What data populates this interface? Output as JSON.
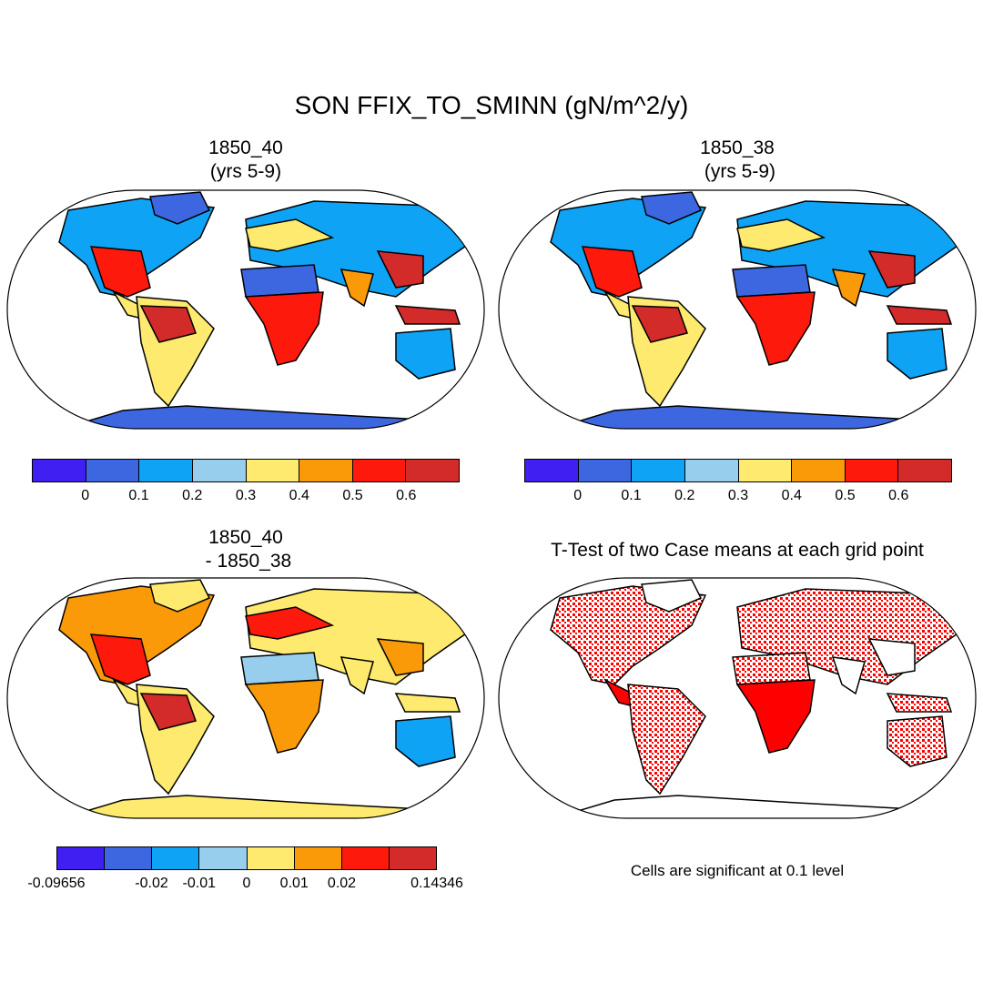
{
  "title": "SON FFIX_TO_SMINN (gN/m^2/y)",
  "panels": {
    "p1": {
      "title": "1850_40\n(yrs 5-9)"
    },
    "p2": {
      "title": "1850_38\n (yrs 5-9)"
    },
    "p3": {
      "title": "1850_40\n - 1850_38"
    },
    "p4": {
      "title": "T-Test of two Case means at each grid point",
      "note": "Cells are significant at 0.1 level"
    }
  },
  "colorbars": {
    "abs": {
      "colors": [
        "#3f1ff2",
        "#3d67e0",
        "#0fa3f5",
        "#97cded",
        "#fdea6f",
        "#fb9a09",
        "#fd1a0d",
        "#d32a2a"
      ],
      "labels": [
        "0",
        "0.1",
        "0.2",
        "0.3",
        "0.4",
        "0.5",
        "0.6"
      ]
    },
    "diff": {
      "colors": [
        "#3f1ff2",
        "#3d67e0",
        "#0fa3f5",
        "#97cded",
        "#fdea6f",
        "#fb9a09",
        "#fd1a0d",
        "#d32a2a"
      ],
      "labels": [
        "-0.09656",
        "-0.02",
        "-0.01",
        "0",
        "0.01",
        "0.02",
        "0.14346"
      ]
    }
  },
  "colors": {
    "ocean": "#ffffff",
    "coast": "#000000",
    "significant": "#ff0000"
  }
}
